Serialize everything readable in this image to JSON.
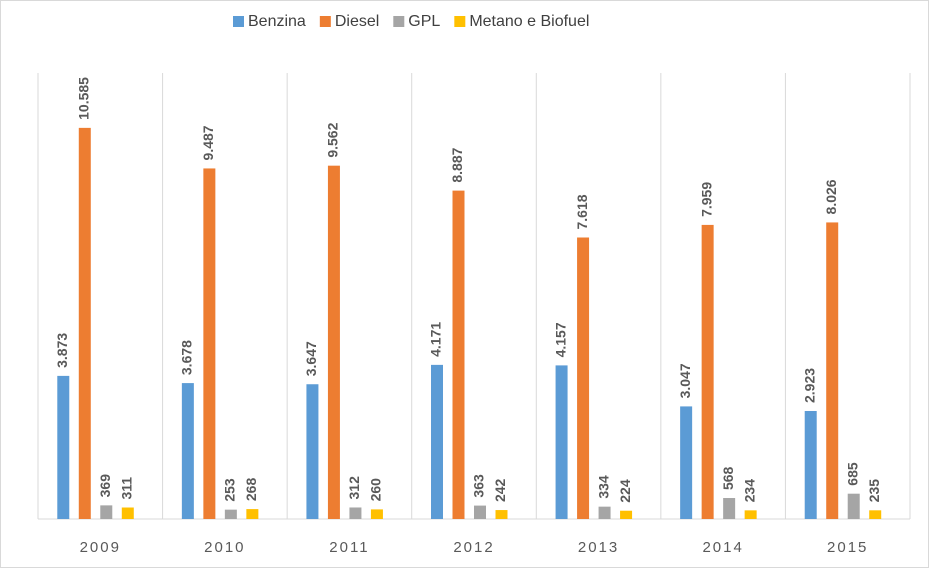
{
  "chart_data": {
    "type": "bar",
    "categories": [
      "2009",
      "2010",
      "2011",
      "2012",
      "2013",
      "2014",
      "2015"
    ],
    "series": [
      {
        "name": "Benzina",
        "color": "#5b9bd5",
        "values": [
          3873,
          3678,
          3647,
          4171,
          4157,
          3047,
          2923
        ],
        "value_labels": [
          "3.873",
          "3.678",
          "3.647",
          "4.171",
          "4.157",
          "3.047",
          "2.923"
        ]
      },
      {
        "name": "Diesel",
        "color": "#ed7d31",
        "values": [
          10585,
          9487,
          9562,
          8887,
          7618,
          7959,
          8026
        ],
        "value_labels": [
          "10.585",
          "9.487",
          "9.562",
          "8.887",
          "7.618",
          "7.959",
          "8.026"
        ]
      },
      {
        "name": "GPL",
        "color": "#a5a5a5",
        "values": [
          369,
          253,
          312,
          363,
          334,
          568,
          685
        ]
      },
      {
        "name": "Metano e Biofuel",
        "color": "#ffc000",
        "values": [
          311,
          268,
          260,
          242,
          224,
          234,
          235
        ]
      }
    ],
    "ylim": [
      0,
      12070
    ],
    "legend": "top"
  }
}
